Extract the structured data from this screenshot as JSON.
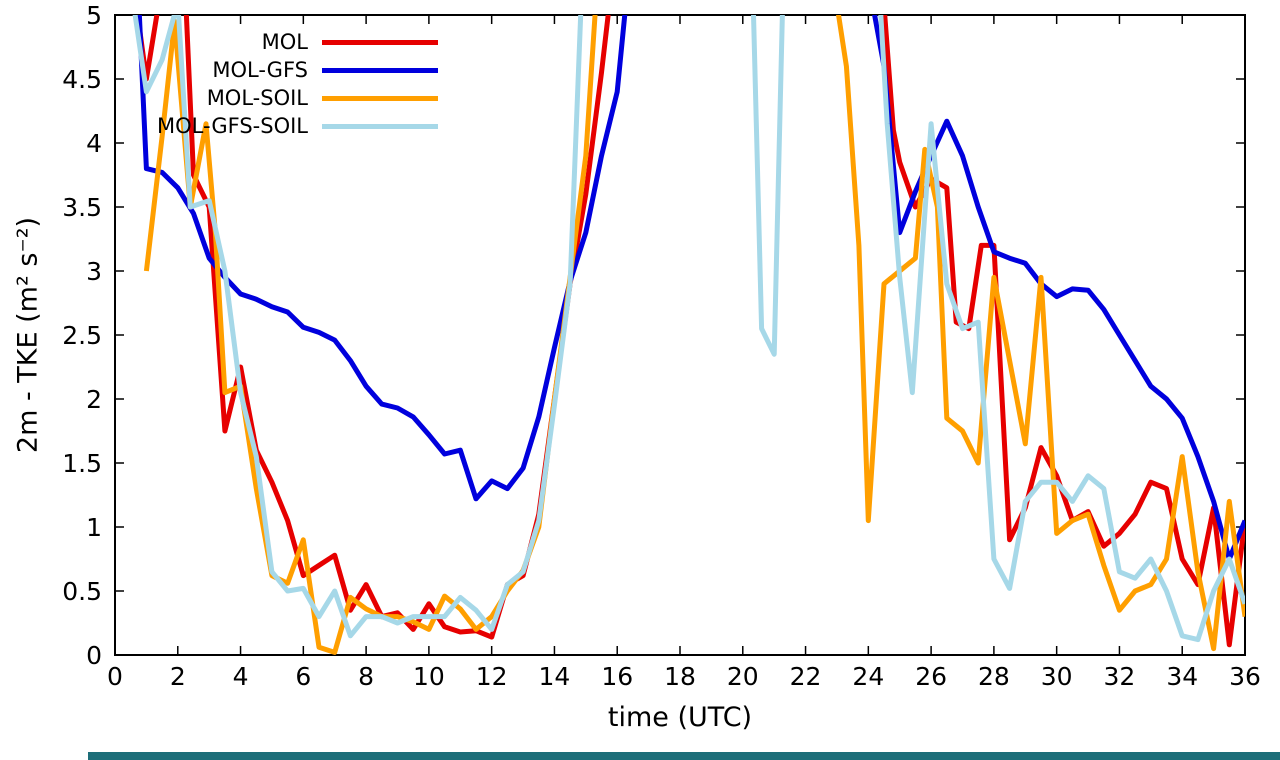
{
  "page": {
    "background": "#ffffff",
    "bottom_strip_color": "#1d6e79"
  },
  "chart_data": {
    "type": "line",
    "title": "",
    "xlabel": "time (UTC)",
    "ylabel": "2m - TKE (m² s⁻²)",
    "xlim": [
      0,
      36
    ],
    "ylim": [
      0,
      5
    ],
    "grid": false,
    "legend_position": "top-left",
    "border_color": "#000000",
    "xticks": {
      "values": [
        0,
        2,
        4,
        6,
        8,
        10,
        12,
        14,
        16,
        18,
        20,
        22,
        24,
        26,
        28,
        30,
        32,
        34,
        36
      ],
      "labels": [
        "0",
        "2",
        "4",
        "6",
        "8",
        "10",
        "12",
        "14",
        "16",
        "18",
        "20",
        "22",
        "24",
        "26",
        "28",
        "30",
        "32",
        "34",
        "36"
      ]
    },
    "yticks": {
      "values": [
        0,
        0.5,
        1,
        1.5,
        2,
        2.5,
        3,
        3.5,
        4,
        4.5,
        5
      ],
      "labels": [
        "0",
        "0.5",
        "1",
        "1.5",
        "2",
        "2.5",
        "3",
        "3.5",
        "4",
        "4.5",
        "5"
      ]
    },
    "series": [
      {
        "name": "MOL",
        "color": "#e60000",
        "segments": [
          [
            [
              0.5,
              5.4
            ],
            [
              1,
              4.5
            ],
            [
              1.6,
              5.4
            ],
            [
              2.2,
              5.4
            ],
            [
              2.5,
              3.75
            ],
            [
              3,
              3.5
            ],
            [
              3.5,
              1.75
            ],
            [
              4,
              2.25
            ],
            [
              4.5,
              1.6
            ],
            [
              5,
              1.35
            ],
            [
              5.5,
              1.05
            ],
            [
              6,
              0.62
            ],
            [
              6.5,
              0.7
            ],
            [
              7,
              0.78
            ],
            [
              7.5,
              0.35
            ],
            [
              8,
              0.55
            ],
            [
              8.5,
              0.3
            ],
            [
              9,
              0.33
            ],
            [
              9.5,
              0.2
            ],
            [
              10,
              0.4
            ],
            [
              10.5,
              0.22
            ],
            [
              11,
              0.18
            ],
            [
              11.5,
              0.19
            ],
            [
              12,
              0.14
            ],
            [
              12.5,
              0.55
            ],
            [
              13,
              0.62
            ],
            [
              13.5,
              1.1
            ],
            [
              14,
              2.0
            ],
            [
              14.5,
              2.9
            ],
            [
              15,
              3.6
            ],
            [
              15.5,
              4.55
            ],
            [
              15.9,
              5.4
            ]
          ],
          [
            [
              24.4,
              5.4
            ],
            [
              24.8,
              4.1
            ],
            [
              25,
              3.85
            ],
            [
              25.5,
              3.5
            ],
            [
              26,
              3.72
            ],
            [
              26.5,
              3.65
            ],
            [
              26.8,
              2.6
            ],
            [
              27.2,
              2.55
            ],
            [
              27.6,
              3.2
            ],
            [
              28,
              3.2
            ],
            [
              28.5,
              0.9
            ],
            [
              29,
              1.15
            ],
            [
              29.5,
              1.62
            ],
            [
              30,
              1.4
            ],
            [
              30.5,
              1.05
            ],
            [
              31,
              1.12
            ],
            [
              31.5,
              0.85
            ],
            [
              32,
              0.95
            ],
            [
              32.5,
              1.1
            ],
            [
              33,
              1.35
            ],
            [
              33.5,
              1.3
            ],
            [
              34,
              0.75
            ],
            [
              34.5,
              0.55
            ],
            [
              35,
              1.15
            ],
            [
              35.5,
              0.08
            ],
            [
              36,
              1.05
            ]
          ]
        ]
      },
      {
        "name": "MOL-GFS",
        "color": "#0000dd",
        "segments": [
          [
            [
              0.7,
              5.4
            ],
            [
              1,
              3.8
            ],
            [
              1.5,
              3.77
            ],
            [
              2,
              3.65
            ],
            [
              2.5,
              3.45
            ],
            [
              3,
              3.1
            ],
            [
              3.5,
              2.95
            ],
            [
              4,
              2.82
            ],
            [
              4.5,
              2.78
            ],
            [
              5,
              2.72
            ],
            [
              5.5,
              2.68
            ],
            [
              6,
              2.56
            ],
            [
              6.5,
              2.52
            ],
            [
              7,
              2.46
            ],
            [
              7.5,
              2.3
            ],
            [
              8,
              2.1
            ],
            [
              8.5,
              1.96
            ],
            [
              9,
              1.93
            ],
            [
              9.5,
              1.86
            ],
            [
              10,
              1.72
            ],
            [
              10.5,
              1.57
            ],
            [
              11,
              1.6
            ],
            [
              11.5,
              1.22
            ],
            [
              12,
              1.36
            ],
            [
              12.5,
              1.3
            ],
            [
              13,
              1.46
            ],
            [
              13.5,
              1.86
            ],
            [
              14,
              2.4
            ],
            [
              14.5,
              2.92
            ],
            [
              15,
              3.3
            ],
            [
              15.5,
              3.9
            ],
            [
              16,
              4.4
            ],
            [
              16.4,
              5.4
            ]
          ],
          [
            [
              23.9,
              5.4
            ],
            [
              24.5,
              4.6
            ],
            [
              25,
              3.3
            ],
            [
              25.5,
              3.62
            ],
            [
              26,
              3.9
            ],
            [
              26.5,
              4.17
            ],
            [
              27,
              3.9
            ],
            [
              27.5,
              3.5
            ],
            [
              28,
              3.15
            ],
            [
              28.5,
              3.1
            ],
            [
              29,
              3.06
            ],
            [
              29.5,
              2.9
            ],
            [
              30,
              2.8
            ],
            [
              30.5,
              2.86
            ],
            [
              31,
              2.85
            ],
            [
              31.5,
              2.7
            ],
            [
              32,
              2.5
            ],
            [
              32.5,
              2.3
            ],
            [
              33,
              2.1
            ],
            [
              33.5,
              2.0
            ],
            [
              34,
              1.85
            ],
            [
              34.5,
              1.55
            ],
            [
              35,
              1.2
            ],
            [
              35.5,
              0.75
            ],
            [
              36,
              1.05
            ]
          ]
        ]
      },
      {
        "name": "MOL-SOIL",
        "color": "#ff9f00",
        "segments": [
          [
            [
              1,
              3.0
            ],
            [
              1.5,
              4.05
            ],
            [
              1.9,
              4.95
            ],
            [
              2.4,
              3.5
            ],
            [
              2.9,
              4.15
            ],
            [
              3.2,
              3.3
            ],
            [
              3.5,
              2.05
            ],
            [
              4,
              2.1
            ],
            [
              4.5,
              1.3
            ],
            [
              5,
              0.62
            ],
            [
              5.5,
              0.56
            ],
            [
              6,
              0.9
            ],
            [
              6.5,
              0.06
            ],
            [
              7,
              0.02
            ],
            [
              7.5,
              0.45
            ],
            [
              8,
              0.36
            ],
            [
              8.5,
              0.3
            ],
            [
              9,
              0.3
            ],
            [
              9.5,
              0.26
            ],
            [
              10,
              0.2
            ],
            [
              10.5,
              0.46
            ],
            [
              11,
              0.36
            ],
            [
              11.5,
              0.2
            ],
            [
              12,
              0.3
            ],
            [
              12.5,
              0.5
            ],
            [
              13,
              0.66
            ],
            [
              13.5,
              1.0
            ],
            [
              14,
              2.0
            ],
            [
              14.5,
              2.95
            ],
            [
              15,
              3.9
            ],
            [
              15.4,
              5.4
            ]
          ],
          [
            [
              22.8,
              5.4
            ],
            [
              23.3,
              4.6
            ],
            [
              23.7,
              3.2
            ],
            [
              24,
              1.05
            ],
            [
              24.5,
              2.9
            ],
            [
              25,
              3.0
            ],
            [
              25.5,
              3.1
            ],
            [
              25.8,
              3.95
            ],
            [
              26.2,
              3.5
            ],
            [
              26.5,
              1.85
            ],
            [
              27,
              1.75
            ],
            [
              27.5,
              1.5
            ],
            [
              28,
              2.95
            ],
            [
              28.5,
              2.3
            ],
            [
              29,
              1.65
            ],
            [
              29.5,
              2.95
            ],
            [
              30,
              0.95
            ],
            [
              30.5,
              1.05
            ],
            [
              31,
              1.1
            ],
            [
              31.5,
              0.7
            ],
            [
              32,
              0.35
            ],
            [
              32.5,
              0.5
            ],
            [
              33,
              0.55
            ],
            [
              33.5,
              0.75
            ],
            [
              34,
              1.55
            ],
            [
              34.5,
              0.65
            ],
            [
              35,
              0.05
            ],
            [
              35.5,
              1.2
            ],
            [
              36,
              0.3
            ]
          ]
        ]
      },
      {
        "name": "MOL-GFS-SOIL",
        "color": "#a6d8e8",
        "segments": [
          [
            [
              0.4,
              5.4
            ],
            [
              1,
              4.4
            ],
            [
              1.5,
              4.65
            ],
            [
              2,
              5.1
            ],
            [
              2.4,
              3.5
            ],
            [
              3,
              3.55
            ],
            [
              3.5,
              3.0
            ],
            [
              4,
              2.05
            ],
            [
              4.5,
              1.55
            ],
            [
              5,
              0.65
            ],
            [
              5.5,
              0.5
            ],
            [
              6,
              0.52
            ],
            [
              6.5,
              0.3
            ],
            [
              7,
              0.5
            ],
            [
              7.5,
              0.15
            ],
            [
              8,
              0.3
            ],
            [
              8.5,
              0.3
            ],
            [
              9,
              0.25
            ],
            [
              9.5,
              0.3
            ],
            [
              10,
              0.3
            ],
            [
              10.5,
              0.3
            ],
            [
              11,
              0.45
            ],
            [
              11.5,
              0.35
            ],
            [
              12,
              0.2
            ],
            [
              12.5,
              0.55
            ],
            [
              13,
              0.65
            ],
            [
              13.5,
              1.05
            ],
            [
              14,
              1.95
            ],
            [
              14.5,
              2.9
            ],
            [
              14.9,
              5.4
            ]
          ],
          [
            [
              20.3,
              5.4
            ],
            [
              20.6,
              2.55
            ],
            [
              21,
              2.35
            ],
            [
              21.3,
              5.4
            ]
          ],
          [
            [
              24.3,
              5.4
            ],
            [
              24.6,
              4.15
            ],
            [
              25,
              2.95
            ],
            [
              25.4,
              2.05
            ],
            [
              26,
              4.15
            ],
            [
              26.5,
              2.9
            ],
            [
              27,
              2.55
            ],
            [
              27.5,
              2.6
            ],
            [
              28,
              0.75
            ],
            [
              28.5,
              0.52
            ],
            [
              29,
              1.2
            ],
            [
              29.5,
              1.35
            ],
            [
              30,
              1.35
            ],
            [
              30.5,
              1.2
            ],
            [
              31,
              1.4
            ],
            [
              31.5,
              1.3
            ],
            [
              32,
              0.65
            ],
            [
              32.5,
              0.6
            ],
            [
              33,
              0.75
            ],
            [
              33.5,
              0.5
            ],
            [
              34,
              0.15
            ],
            [
              34.5,
              0.12
            ],
            [
              35,
              0.5
            ],
            [
              35.5,
              0.75
            ],
            [
              36,
              0.4
            ]
          ]
        ]
      }
    ]
  }
}
